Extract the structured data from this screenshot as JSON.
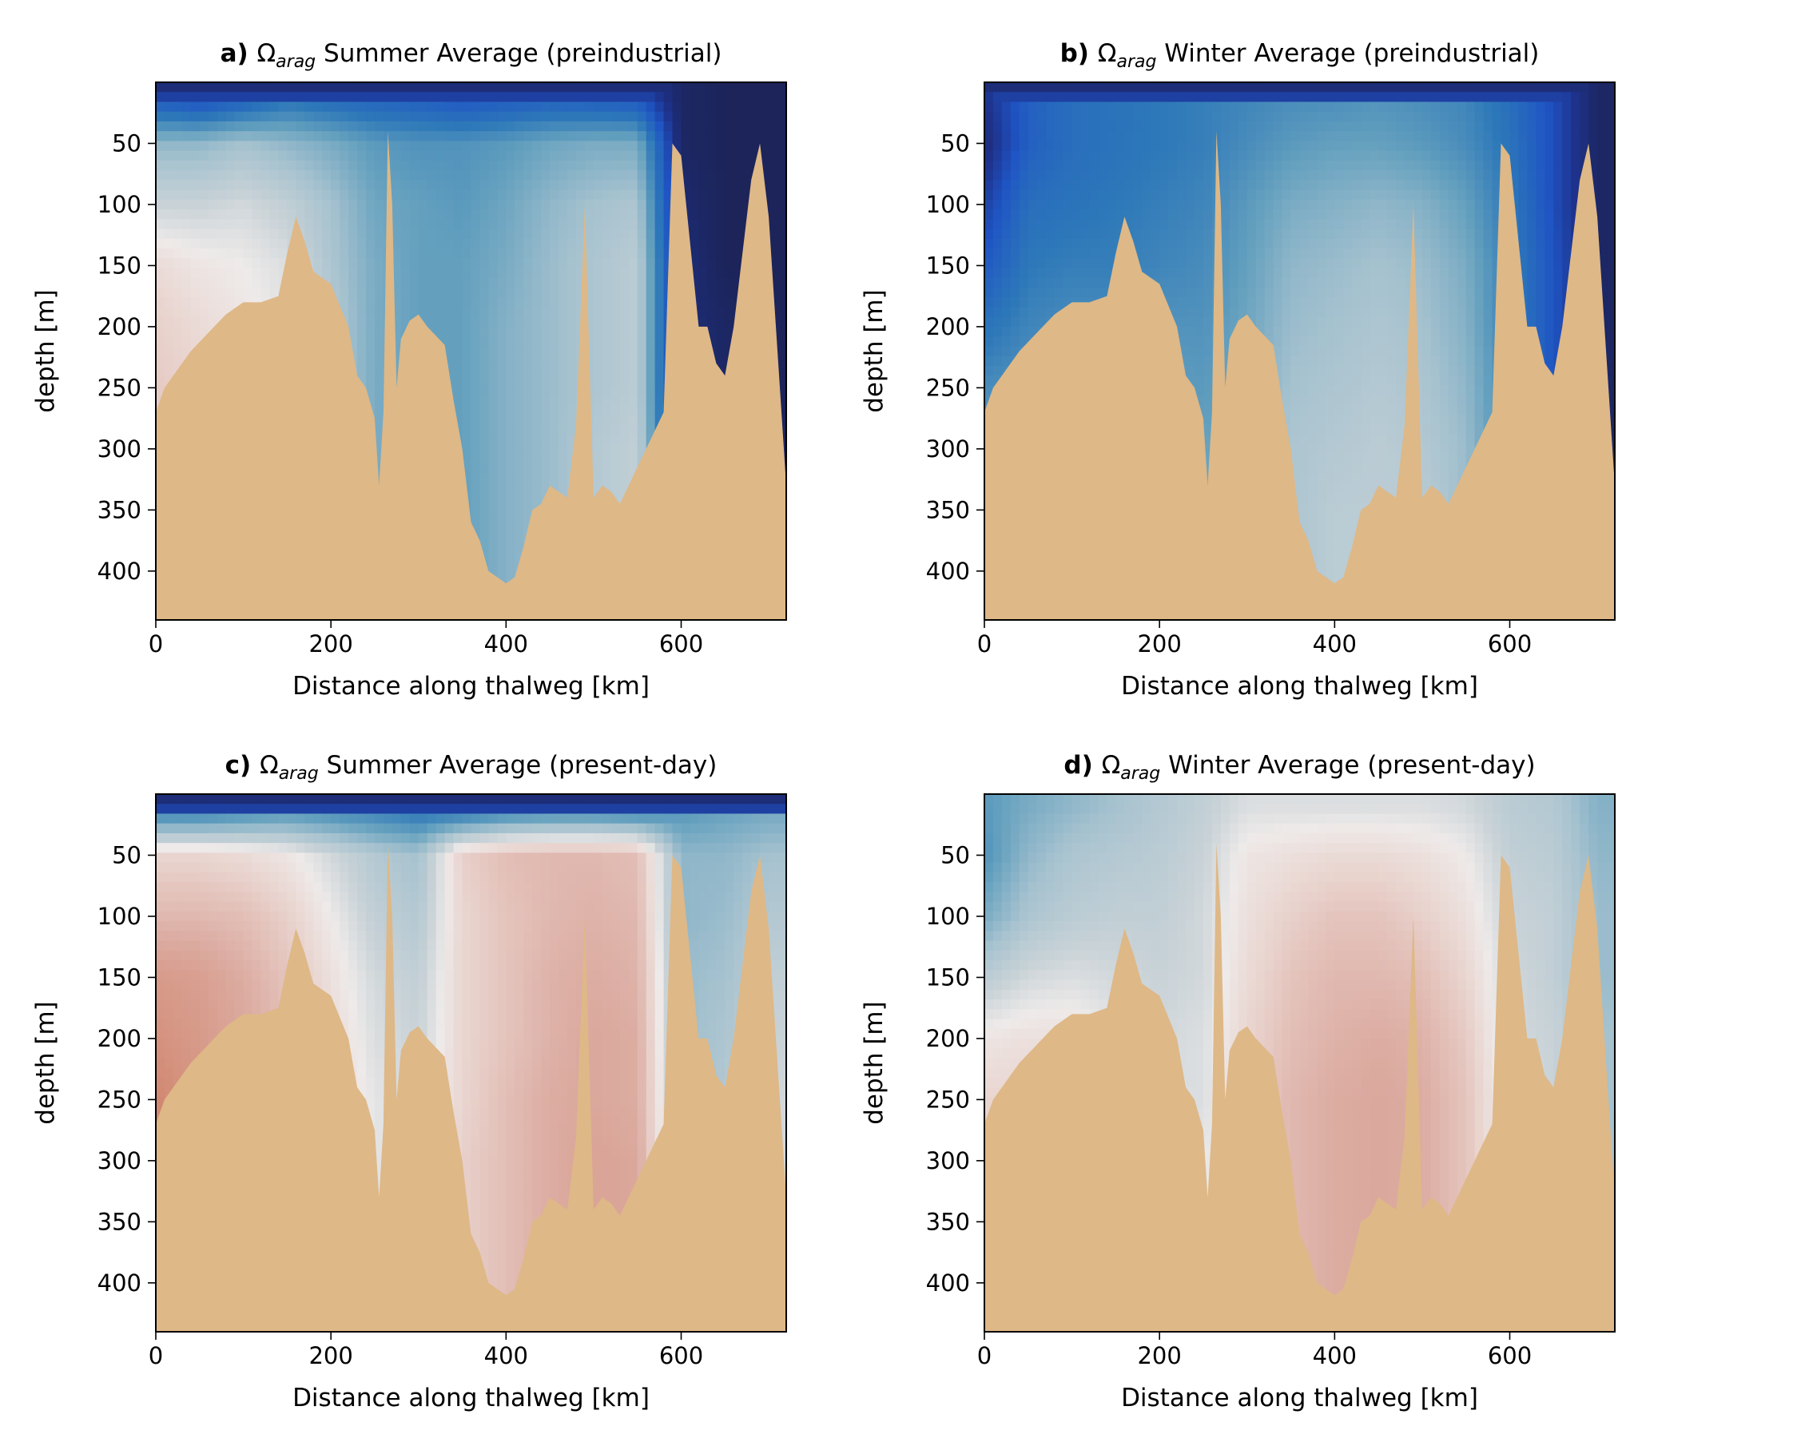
{
  "figure": {
    "colors": {
      "seafloor": "#DEB887",
      "deep_blue": "#1a1c3c",
      "blue": "#1f55c4",
      "mid_blue": "#3d8bbd",
      "light_blue": "#a6c2cf",
      "near_white": "#eeeae9",
      "light_red": "#e6c8c2",
      "red": "#d08a78"
    }
  },
  "chart_data": [
    {
      "type": "heatmap",
      "panel": "a",
      "title_prefix": "a)",
      "title_symbol": "Ω",
      "title_sub": "arag",
      "title_rest": " Summer Average (preindustrial)",
      "xlabel": "Distance along thalweg [km]",
      "ylabel": "depth [m]",
      "xlim": [
        0,
        720
      ],
      "ylim": [
        440,
        0
      ],
      "xticks": [
        0,
        200,
        400,
        600
      ],
      "yticks": [
        50,
        100,
        150,
        200,
        250,
        300,
        350,
        400
      ],
      "colorscale": "blue (low) to red (high)",
      "x": [
        0,
        50,
        100,
        150,
        200,
        250,
        300,
        350,
        400,
        450,
        500,
        550,
        600,
        650,
        700
      ],
      "depth": [
        10,
        50,
        100,
        150,
        200,
        250,
        300,
        350,
        400
      ],
      "values_scale": "0 = deep blue, 4 = near white, 6 = red",
      "values": [
        [
          1.2,
          1.0,
          1.3,
          1.8,
          1.6,
          1.5,
          1.4,
          1.2,
          1.3,
          1.4,
          1.3,
          1.2,
          0.4,
          0.3,
          0.3
        ],
        [
          3.0,
          3.0,
          3.2,
          3.0,
          2.8,
          2.5,
          2.4,
          2.4,
          2.5,
          2.7,
          2.8,
          2.8,
          0.4,
          0.3,
          0.3
        ],
        [
          3.7,
          3.7,
          3.8,
          3.6,
          3.2,
          2.7,
          2.6,
          2.5,
          2.7,
          3.0,
          3.2,
          3.3,
          0.5,
          0.3,
          0.3
        ],
        [
          4.4,
          4.2,
          4.1,
          3.9,
          3.3,
          2.8,
          2.6,
          2.6,
          2.8,
          3.1,
          3.3,
          3.5,
          0.6,
          0.3,
          0.3
        ],
        [
          4.6,
          4.4,
          4.2,
          4.0,
          3.4,
          2.8,
          2.6,
          2.6,
          2.9,
          3.1,
          3.3,
          3.5,
          0.6,
          0.4,
          0.3
        ],
        [
          4.7,
          4.5,
          4.3,
          4.0,
          3.4,
          2.8,
          2.6,
          2.6,
          2.9,
          3.1,
          3.3,
          3.5,
          0.6,
          0.4,
          0.3
        ],
        [
          4.7,
          4.5,
          4.3,
          4.0,
          3.4,
          2.8,
          2.6,
          2.6,
          2.9,
          3.1,
          3.4,
          3.6,
          0.6,
          0.4,
          0.3
        ],
        [
          4.7,
          4.5,
          4.3,
          4.0,
          3.4,
          2.8,
          2.6,
          2.6,
          2.9,
          3.1,
          3.4,
          3.6,
          0.6,
          0.4,
          0.3
        ],
        [
          4.7,
          4.5,
          4.3,
          4.0,
          3.4,
          2.8,
          2.6,
          2.6,
          2.9,
          3.1,
          3.4,
          3.6,
          0.6,
          0.4,
          0.3
        ]
      ]
    },
    {
      "type": "heatmap",
      "panel": "b",
      "title_prefix": "b)",
      "title_symbol": "Ω",
      "title_sub": "arag",
      "title_rest": " Winter Average (preindustrial)",
      "xlabel": "Distance along thalweg [km]",
      "ylabel": "depth [m]",
      "xlim": [
        0,
        720
      ],
      "ylim": [
        440,
        0
      ],
      "xticks": [
        0,
        200,
        400,
        600
      ],
      "yticks": [
        50,
        100,
        150,
        200,
        250,
        300,
        350,
        400
      ],
      "colorscale": "blue (low) to red (high)",
      "x": [
        0,
        50,
        100,
        150,
        200,
        250,
        300,
        350,
        400,
        450,
        500,
        550,
        600,
        650,
        700
      ],
      "depth": [
        10,
        50,
        100,
        150,
        200,
        250,
        300,
        350,
        400
      ],
      "values_scale": "0 = deep blue, 4 = near white, 6 = red",
      "values": [
        [
          0.8,
          1.5,
          1.8,
          1.9,
          2.0,
          2.1,
          2.2,
          2.3,
          2.3,
          2.4,
          2.3,
          2.2,
          1.8,
          1.2,
          0.4
        ],
        [
          0.6,
          1.5,
          1.8,
          1.9,
          2.0,
          2.1,
          2.3,
          2.5,
          2.6,
          2.6,
          2.5,
          2.3,
          1.9,
          1.2,
          0.4
        ],
        [
          1.0,
          1.8,
          1.9,
          2.0,
          2.1,
          2.2,
          2.5,
          2.8,
          2.9,
          3.0,
          2.9,
          2.6,
          2.0,
          1.2,
          0.4
        ],
        [
          1.4,
          2.0,
          2.1,
          2.1,
          2.2,
          2.3,
          2.6,
          3.0,
          3.1,
          3.2,
          3.1,
          2.8,
          2.1,
          1.3,
          0.4
        ],
        [
          1.9,
          2.2,
          2.3,
          2.3,
          2.4,
          2.4,
          2.7,
          3.1,
          3.2,
          3.3,
          3.2,
          2.9,
          2.1,
          1.3,
          0.4
        ],
        [
          2.3,
          2.4,
          2.5,
          2.5,
          2.6,
          2.5,
          2.8,
          3.2,
          3.3,
          3.4,
          3.3,
          3.0,
          2.2,
          1.3,
          0.4
        ],
        [
          2.5,
          2.6,
          2.7,
          2.7,
          2.8,
          2.6,
          2.9,
          3.3,
          3.4,
          3.5,
          3.4,
          3.1,
          2.2,
          1.3,
          0.4
        ],
        [
          2.6,
          2.7,
          2.8,
          2.8,
          2.9,
          2.7,
          3.0,
          3.3,
          3.5,
          3.5,
          3.5,
          3.1,
          2.2,
          1.3,
          0.4
        ],
        [
          2.7,
          2.8,
          2.9,
          2.9,
          3.0,
          2.8,
          3.0,
          3.3,
          3.5,
          3.5,
          3.5,
          3.1,
          2.2,
          1.3,
          0.4
        ]
      ]
    },
    {
      "type": "heatmap",
      "panel": "c",
      "title_prefix": "c)",
      "title_symbol": "Ω",
      "title_sub": "arag",
      "title_rest": " Summer Average (present-day)",
      "xlabel": "Distance along thalweg [km]",
      "ylabel": "depth [m]",
      "xlim": [
        0,
        720
      ],
      "ylim": [
        440,
        0
      ],
      "xticks": [
        0,
        200,
        400,
        600
      ],
      "yticks": [
        50,
        100,
        150,
        200,
        250,
        300,
        350,
        400
      ],
      "colorscale": "blue (low) to red (high)",
      "x": [
        0,
        50,
        100,
        150,
        200,
        250,
        300,
        350,
        400,
        450,
        500,
        550,
        600,
        650,
        700
      ],
      "depth": [
        10,
        50,
        100,
        150,
        200,
        250,
        300,
        350,
        400
      ],
      "values_scale": "0 = deep blue, 4 = near white, 6 = red",
      "values": [
        [
          1.8,
          1.8,
          2.0,
          2.2,
          2.1,
          2.0,
          1.8,
          1.6,
          1.8,
          1.9,
          1.9,
          1.8,
          2.4,
          2.6,
          2.7
        ],
        [
          4.5,
          4.5,
          4.4,
          4.2,
          3.8,
          3.4,
          3.2,
          4.6,
          4.9,
          5.0,
          5.0,
          4.9,
          3.0,
          3.0,
          3.2
        ],
        [
          5.0,
          5.0,
          4.9,
          4.6,
          4.1,
          3.6,
          3.4,
          4.5,
          4.8,
          5.0,
          5.1,
          5.0,
          3.0,
          3.1,
          3.4
        ],
        [
          5.6,
          5.5,
          5.2,
          4.8,
          4.3,
          3.8,
          3.6,
          4.5,
          4.8,
          5.1,
          5.2,
          5.1,
          3.1,
          3.2,
          3.6
        ],
        [
          5.8,
          5.6,
          5.3,
          4.9,
          4.4,
          3.9,
          3.7,
          4.5,
          4.8,
          5.1,
          5.3,
          5.2,
          3.1,
          3.3,
          3.7
        ],
        [
          6.0,
          5.7,
          5.4,
          5.0,
          4.5,
          4.0,
          3.8,
          4.5,
          4.9,
          5.2,
          5.3,
          5.2,
          3.2,
          3.4,
          3.8
        ],
        [
          6.0,
          5.7,
          5.4,
          5.0,
          4.5,
          4.0,
          3.8,
          4.6,
          4.9,
          5.2,
          5.4,
          5.3,
          3.2,
          3.4,
          3.8
        ],
        [
          6.0,
          5.7,
          5.4,
          5.0,
          4.5,
          4.0,
          3.8,
          4.6,
          4.9,
          5.2,
          5.4,
          5.3,
          3.2,
          3.4,
          3.8
        ],
        [
          6.0,
          5.7,
          5.4,
          5.0,
          4.5,
          4.0,
          3.8,
          4.6,
          4.9,
          5.2,
          5.4,
          5.3,
          3.2,
          3.4,
          3.8
        ]
      ]
    },
    {
      "type": "heatmap",
      "panel": "d",
      "title_prefix": "d)",
      "title_symbol": "Ω",
      "title_sub": "arag",
      "title_rest": " Winter Average (present-day)",
      "xlabel": "Distance along thalweg [km]",
      "ylabel": "depth [m]",
      "xlim": [
        0,
        720
      ],
      "ylim": [
        440,
        0
      ],
      "xticks": [
        0,
        200,
        400,
        600
      ],
      "yticks": [
        50,
        100,
        150,
        200,
        250,
        300,
        350,
        400
      ],
      "colorscale": "blue (low) to red (high)",
      "x": [
        0,
        50,
        100,
        150,
        200,
        250,
        300,
        350,
        400,
        450,
        500,
        550,
        600,
        650,
        700
      ],
      "depth": [
        10,
        50,
        100,
        150,
        200,
        250,
        300,
        350,
        400
      ],
      "values_scale": "0 = deep blue, 4 = near white, 6 = red",
      "values": [
        [
          2.5,
          2.8,
          3.0,
          3.2,
          3.4,
          3.6,
          3.9,
          3.9,
          3.9,
          3.9,
          3.9,
          3.8,
          3.5,
          3.4,
          2.9
        ],
        [
          2.4,
          3.0,
          3.3,
          3.4,
          3.5,
          3.7,
          4.2,
          4.3,
          4.4,
          4.4,
          4.3,
          4.1,
          3.6,
          3.5,
          3.0
        ],
        [
          2.8,
          3.3,
          3.5,
          3.6,
          3.6,
          3.8,
          4.3,
          4.6,
          4.8,
          4.8,
          4.6,
          4.3,
          3.7,
          3.6,
          3.1
        ],
        [
          3.5,
          3.8,
          3.9,
          3.8,
          3.7,
          3.8,
          4.4,
          4.8,
          5.0,
          5.0,
          4.9,
          4.5,
          3.8,
          3.6,
          3.1
        ],
        [
          4.2,
          4.3,
          4.3,
          4.0,
          3.8,
          3.9,
          4.5,
          4.9,
          5.1,
          5.2,
          5.1,
          4.7,
          3.8,
          3.7,
          3.2
        ],
        [
          4.5,
          4.5,
          4.4,
          4.1,
          3.9,
          3.9,
          4.6,
          5.0,
          5.2,
          5.3,
          5.2,
          4.8,
          3.9,
          3.7,
          3.2
        ],
        [
          4.6,
          4.6,
          4.5,
          4.2,
          4.0,
          4.0,
          4.6,
          5.0,
          5.2,
          5.3,
          5.2,
          4.8,
          3.9,
          3.7,
          3.2
        ],
        [
          4.6,
          4.6,
          4.5,
          4.2,
          4.0,
          4.0,
          4.6,
          5.0,
          5.2,
          5.3,
          5.2,
          4.8,
          3.9,
          3.7,
          3.2
        ],
        [
          4.6,
          4.6,
          4.5,
          4.2,
          4.0,
          4.0,
          4.6,
          5.0,
          5.2,
          5.3,
          5.2,
          4.8,
          3.9,
          3.7,
          3.2
        ]
      ]
    }
  ],
  "bathymetry": {
    "x_km": [
      0,
      10,
      20,
      30,
      40,
      60,
      80,
      100,
      120,
      140,
      150,
      160,
      170,
      180,
      200,
      220,
      230,
      240,
      250,
      255,
      260,
      265,
      270,
      275,
      280,
      290,
      300,
      310,
      330,
      340,
      350,
      360,
      370,
      380,
      400,
      410,
      420,
      430,
      440,
      450,
      470,
      480,
      490,
      500,
      510,
      520,
      530,
      540,
      550,
      560,
      570,
      580,
      590,
      600,
      610,
      620,
      630,
      640,
      650,
      660,
      670,
      680,
      690,
      700,
      710,
      720
    ],
    "depth_m": [
      270,
      250,
      240,
      230,
      220,
      205,
      190,
      180,
      180,
      175,
      140,
      110,
      130,
      155,
      165,
      200,
      240,
      250,
      275,
      330,
      270,
      40,
      100,
      250,
      210,
      195,
      190,
      200,
      215,
      260,
      300,
      360,
      375,
      400,
      410,
      405,
      380,
      350,
      345,
      330,
      340,
      280,
      100,
      340,
      330,
      335,
      345,
      330,
      315,
      300,
      285,
      270,
      50,
      60,
      130,
      200,
      200,
      230,
      240,
      200,
      140,
      80,
      50,
      110,
      220,
      330
    ]
  }
}
